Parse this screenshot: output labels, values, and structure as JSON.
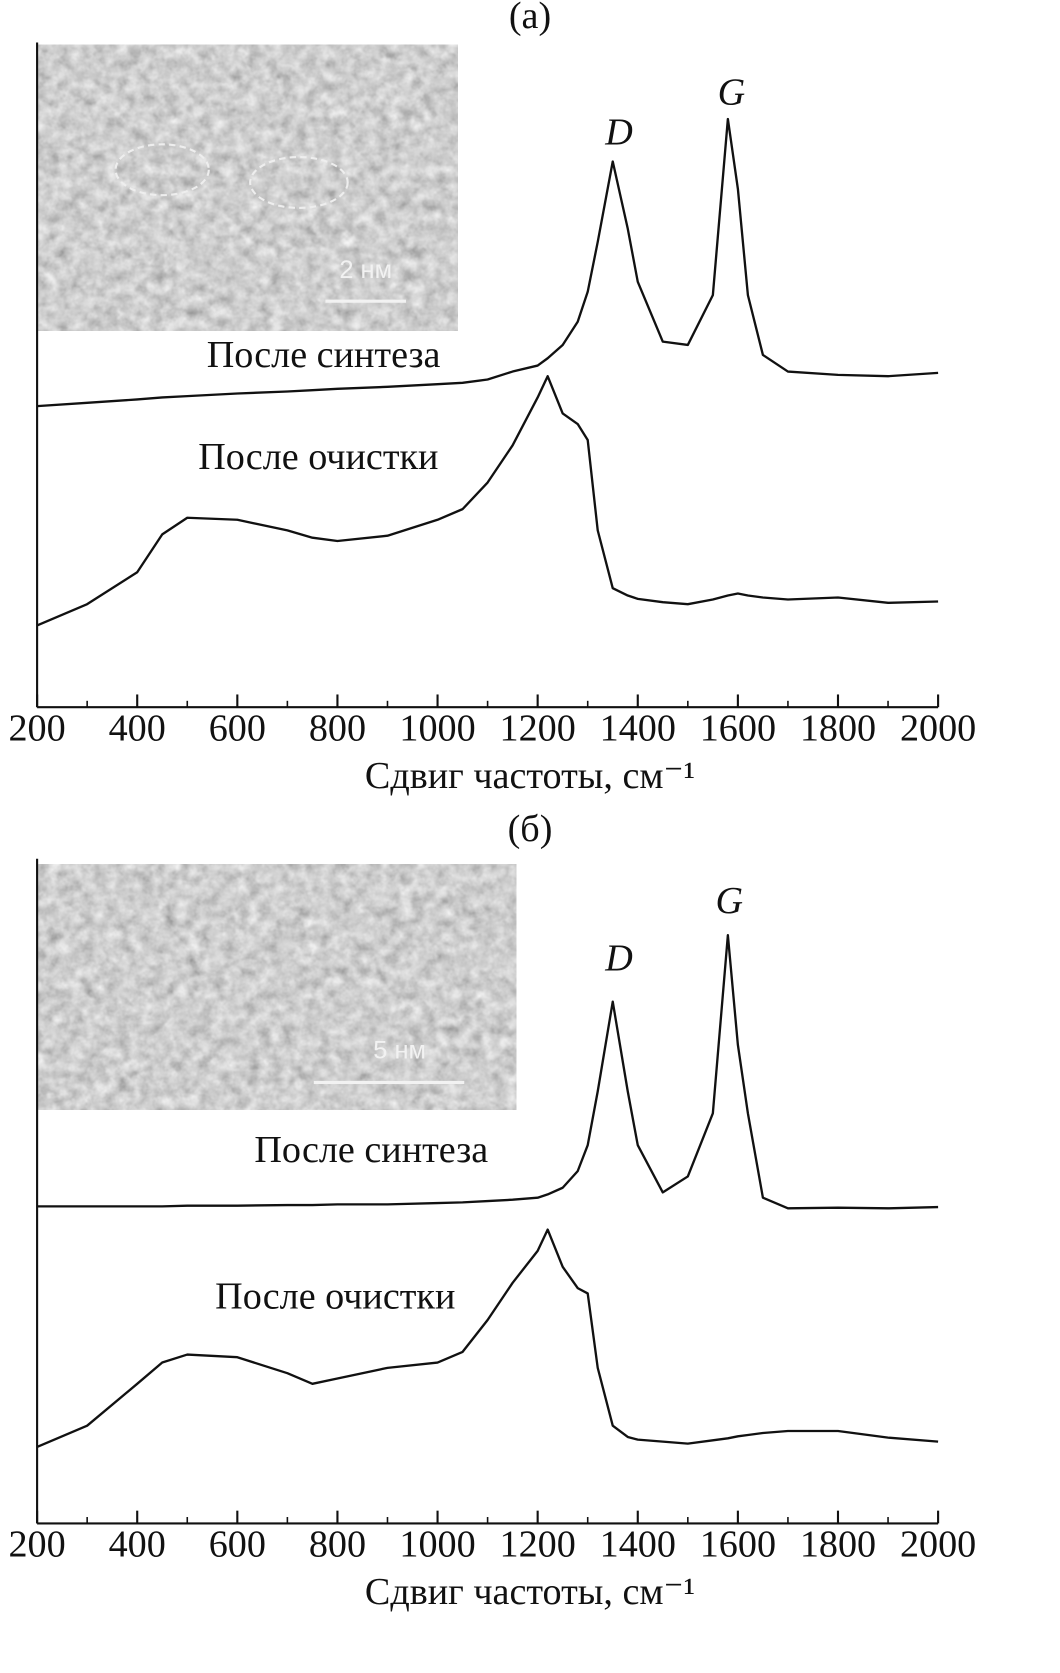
{
  "chart_data": [
    {
      "type": "line",
      "title": "(а)",
      "xlabel": "Сдвиг частоты, см⁻¹",
      "xlim": [
        200,
        2000
      ],
      "xticks": [
        200,
        400,
        600,
        800,
        1000,
        1200,
        1400,
        1600,
        1800,
        2000
      ],
      "xticks_minor": [
        300,
        500,
        700,
        900,
        1100,
        1300,
        1500,
        1700,
        1900
      ],
      "ylim": [
        0,
        100
      ],
      "inset": {
        "scale_label": "2 нм"
      },
      "annotations": [
        {
          "text": "D"
        },
        {
          "text": "G"
        }
      ],
      "x": [
        200,
        300,
        400,
        450,
        500,
        600,
        700,
        750,
        800,
        900,
        1000,
        1050,
        1100,
        1150,
        1200,
        1220,
        1250,
        1280,
        1300,
        1320,
        1350,
        1380,
        1400,
        1450,
        1500,
        1550,
        1580,
        1600,
        1620,
        1650,
        1700,
        1800,
        1900,
        2000
      ],
      "series": [
        {
          "name": "После синтеза",
          "color": "#111111",
          "values": [
            45.3,
            45.8,
            46.3,
            46.6,
            46.8,
            47.2,
            47.5,
            47.7,
            47.9,
            48.2,
            48.6,
            48.8,
            49.3,
            50.5,
            51.4,
            52.5,
            54.5,
            58,
            62.5,
            70,
            82.1,
            72,
            64,
            55,
            54.5,
            62,
            88.5,
            78,
            62,
            53,
            50.5,
            50,
            49.8,
            50.3
          ]
        },
        {
          "name": "После очистки",
          "color": "#111111",
          "values": [
            12.3,
            15.5,
            20.3,
            26,
            28.5,
            28.2,
            26.6,
            25.5,
            25,
            25.8,
            28.2,
            29.8,
            33.8,
            39.4,
            46.6,
            49.8,
            44.2,
            42.6,
            40.2,
            26.6,
            17.9,
            16.8,
            16.3,
            15.8,
            15.5,
            16.2,
            16.8,
            17.1,
            16.8,
            16.5,
            16.2,
            16.5,
            15.7,
            15.9
          ]
        }
      ]
    },
    {
      "type": "line",
      "title": "(б)",
      "xlabel": "Сдвиг частоты, см⁻¹",
      "xlim": [
        200,
        2000
      ],
      "xticks": [
        200,
        400,
        600,
        800,
        1000,
        1200,
        1400,
        1600,
        1800,
        2000
      ],
      "xticks_minor": [
        300,
        500,
        700,
        900,
        1100,
        1300,
        1500,
        1700,
        1900
      ],
      "ylim": [
        0,
        100
      ],
      "inset": {
        "scale_label": "5 нм"
      },
      "annotations": [
        {
          "text": "D"
        },
        {
          "text": "G"
        }
      ],
      "x": [
        200,
        300,
        400,
        450,
        500,
        600,
        700,
        750,
        800,
        900,
        1000,
        1050,
        1100,
        1150,
        1200,
        1220,
        1250,
        1280,
        1300,
        1320,
        1350,
        1380,
        1400,
        1450,
        1500,
        1550,
        1580,
        1600,
        1620,
        1650,
        1700,
        1800,
        1900,
        2000
      ],
      "series": [
        {
          "name": "После синтеза",
          "color": "#111111",
          "values": [
            47.7,
            47.7,
            47.7,
            47.7,
            47.8,
            47.8,
            47.9,
            47.9,
            48,
            48,
            48.2,
            48.3,
            48.5,
            48.7,
            49,
            49.5,
            50.5,
            53,
            56.9,
            65,
            78.5,
            65,
            56.9,
            49.8,
            52.2,
            61.7,
            88.5,
            72,
            61.7,
            49,
            47.4,
            47.5,
            47.4,
            47.6
          ]
        },
        {
          "name": "После очистки",
          "color": "#111111",
          "values": [
            11.5,
            14.7,
            21,
            24.2,
            25.4,
            25,
            22.6,
            21,
            21.8,
            23.4,
            24.2,
            25.8,
            30.6,
            36.2,
            41,
            44.2,
            38.6,
            35.4,
            34.6,
            23.4,
            14.7,
            13,
            12.6,
            12.3,
            12,
            12.5,
            12.8,
            13.1,
            13.3,
            13.6,
            13.9,
            13.9,
            12.9,
            12.3
          ]
        }
      ]
    }
  ]
}
